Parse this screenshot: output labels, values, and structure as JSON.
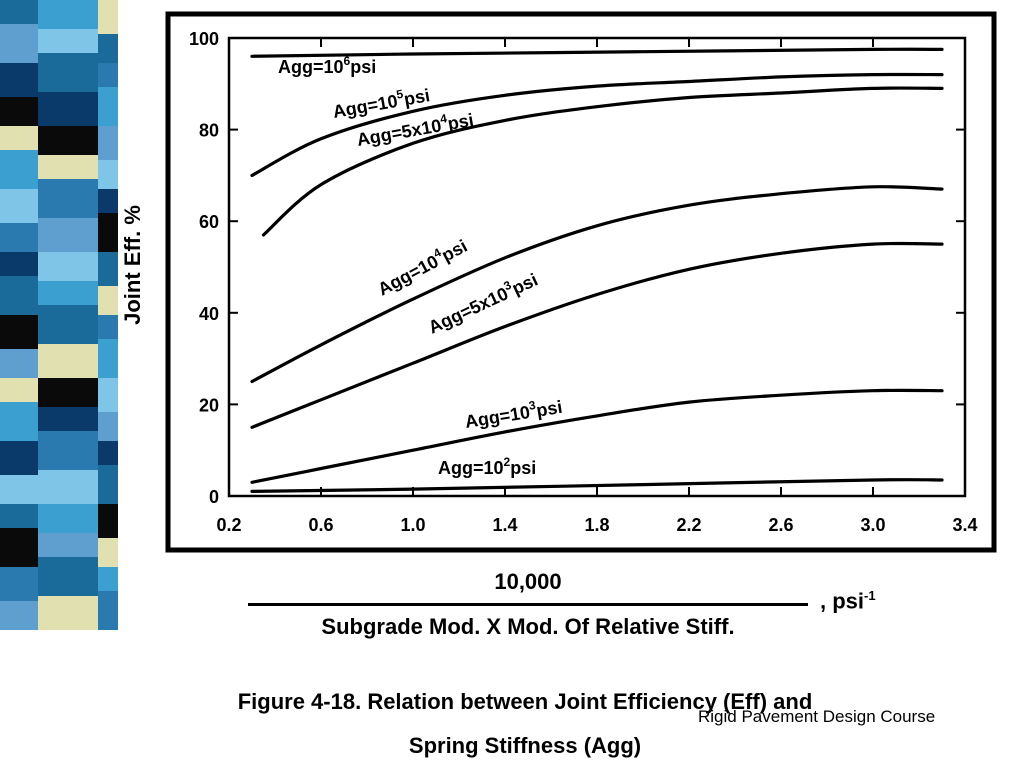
{
  "stripe_colors": [
    "#1a6a9a",
    "#3ba0d0",
    "#0a3a6a",
    "#5f9fd0",
    "#e0e0b0",
    "#0a0a0a",
    "#7ec5e8",
    "#2a7ab0"
  ],
  "chart_data": {
    "type": "line",
    "xlabel": {
      "numerator": "10,000",
      "denominator": "Subgrade Mod. X Mod. Of Relative Stiff.",
      "unit": ", psi",
      "unit_sup": "-1"
    },
    "ylabel": "Joint Eff. %",
    "xlim": [
      0.2,
      3.4
    ],
    "ylim": [
      0,
      100
    ],
    "x_ticks": [
      "0.2",
      "0.6",
      "1.0",
      "1.4",
      "1.8",
      "2.2",
      "2.6",
      "3.0",
      "3.4"
    ],
    "y_ticks": [
      "0",
      "20",
      "40",
      "60",
      "80",
      "100"
    ],
    "grid": false,
    "series": [
      {
        "name": "Agg=10^6psi",
        "label_parts": [
          "Agg=10",
          "6",
          "psi"
        ],
        "x": [
          0.3,
          1.0,
          2.0,
          3.0,
          3.3
        ],
        "y": [
          96,
          96.5,
          97,
          97.5,
          97.5
        ]
      },
      {
        "name": "Agg=10^5psi",
        "label_parts": [
          "Agg=10",
          "5",
          "psi"
        ],
        "x": [
          0.3,
          0.6,
          1.0,
          1.4,
          1.8,
          2.2,
          2.6,
          3.0,
          3.3
        ],
        "y": [
          70,
          78,
          84,
          87.5,
          89.5,
          90.5,
          91.5,
          92,
          92
        ]
      },
      {
        "name": "Agg=5x10^4psi",
        "label_parts": [
          "Agg=5x10",
          "4",
          "psi"
        ],
        "x": [
          0.35,
          0.6,
          1.0,
          1.4,
          1.8,
          2.2,
          2.6,
          3.0,
          3.3
        ],
        "y": [
          57,
          68,
          77,
          82,
          85,
          87,
          88,
          89,
          89
        ]
      },
      {
        "name": "Agg=10^4psi",
        "label_parts": [
          "Agg=10",
          "4",
          "psi"
        ],
        "x": [
          0.3,
          0.6,
          1.0,
          1.4,
          1.8,
          2.2,
          2.6,
          3.0,
          3.3
        ],
        "y": [
          25,
          33,
          43,
          52,
          59,
          63.5,
          66,
          67.5,
          67
        ]
      },
      {
        "name": "Agg=5x10^3psi",
        "label_parts": [
          "Agg=5x10",
          "3",
          "psi"
        ],
        "x": [
          0.3,
          0.6,
          1.0,
          1.4,
          1.8,
          2.2,
          2.6,
          3.0,
          3.3
        ],
        "y": [
          15,
          21,
          29,
          37,
          44,
          49.5,
          53,
          55,
          55
        ]
      },
      {
        "name": "Agg=10^3psi",
        "label_parts": [
          "Agg=10",
          "3",
          "psi"
        ],
        "x": [
          0.3,
          0.6,
          1.0,
          1.4,
          1.8,
          2.2,
          2.6,
          3.0,
          3.3
        ],
        "y": [
          3,
          6,
          10,
          14,
          17.5,
          20.5,
          22,
          23,
          23
        ]
      },
      {
        "name": "Agg=10^2psi",
        "label_parts": [
          "Agg=10",
          "2",
          "psi"
        ],
        "x": [
          0.3,
          1.0,
          2.0,
          3.0,
          3.3
        ],
        "y": [
          1,
          1.5,
          2.5,
          3.5,
          3.5
        ]
      }
    ]
  },
  "caption_line1": "Figure 4-18.  Relation between Joint Efficiency (Eff) and",
  "caption_line2": "Spring Stiffness (Agg)",
  "footer": "Rigid Pavement Design Course"
}
